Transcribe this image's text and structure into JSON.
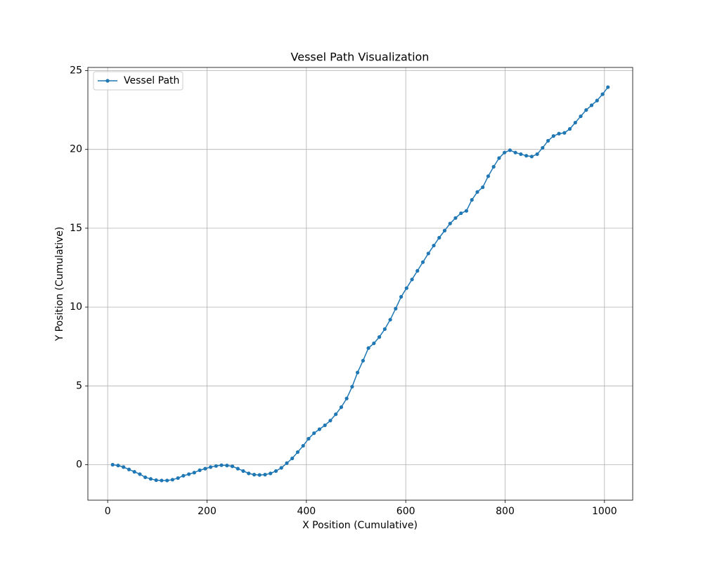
{
  "chart_data": {
    "type": "line",
    "title": "Vessel Path Visualization",
    "x_label": "X Position (Cumulative)",
    "y_label": "Y Position (Cumulative)",
    "x": [
      10.0,
      21.0,
      31.9,
      42.9,
      53.8,
      64.8,
      75.7,
      86.7,
      97.6,
      108.6,
      119.6,
      130.5,
      141.5,
      152.4,
      163.4,
      174.3,
      185.3,
      196.3,
      207.2,
      218.2,
      229.1,
      240.1,
      251.0,
      262.0,
      272.9,
      283.9,
      294.9,
      305.8,
      316.8,
      327.7,
      338.7,
      349.6,
      360.6,
      371.5,
      382.5,
      393.5,
      404.4,
      415.4,
      426.3,
      437.3,
      448.2,
      459.2,
      470.2,
      481.1,
      492.1,
      503.0,
      514.0,
      524.9,
      535.9,
      546.8,
      557.8,
      568.8,
      579.7,
      590.7,
      601.6,
      612.6,
      623.5,
      634.5,
      645.5,
      656.4,
      667.4,
      678.3,
      689.3,
      700.2,
      711.2,
      722.1,
      733.1,
      744.1,
      755.0,
      766.0,
      776.9,
      787.9,
      798.8,
      809.8,
      820.7,
      831.7,
      842.7,
      853.6,
      864.6,
      875.5,
      886.5,
      897.4,
      908.4,
      919.4,
      930.3,
      941.3,
      952.2,
      963.2,
      974.1,
      985.1,
      996.1,
      1007.0
    ],
    "series": [
      {
        "name": "Vessel Path",
        "color": "#1f77b4",
        "values": [
          0,
          -0.05,
          -0.15,
          -0.3,
          -0.45,
          -0.6,
          -0.8,
          -0.9,
          -0.98,
          -1.0,
          -1.0,
          -0.95,
          -0.85,
          -0.7,
          -0.6,
          -0.5,
          -0.35,
          -0.25,
          -0.15,
          -0.08,
          -0.03,
          -0.05,
          -0.1,
          -0.25,
          -0.4,
          -0.55,
          -0.63,
          -0.65,
          -0.63,
          -0.55,
          -0.4,
          -0.2,
          0.1,
          0.4,
          0.8,
          1.2,
          1.65,
          2.0,
          2.25,
          2.5,
          2.8,
          3.2,
          3.65,
          4.2,
          4.95,
          5.85,
          6.6,
          7.4,
          7.7,
          8.1,
          8.6,
          9.2,
          9.9,
          10.65,
          11.2,
          11.75,
          12.3,
          12.85,
          13.4,
          13.9,
          14.4,
          14.85,
          15.3,
          15.65,
          15.95,
          16.1,
          16.8,
          17.3,
          17.6,
          18.3,
          18.9,
          19.45,
          19.8,
          19.95,
          19.8,
          19.7,
          19.6,
          19.55,
          19.7,
          20.1,
          20.55,
          20.85,
          21.0,
          21.05,
          21.3,
          21.7,
          22.1,
          22.5,
          22.8,
          23.1,
          23.5,
          23.95
        ]
      }
    ],
    "xlim": [
      -39.85,
      1056.85
    ],
    "xticks": [
      0,
      200,
      400,
      600,
      800,
      1000
    ],
    "ylim": [
      -2.25,
      25.2
    ],
    "yticks": [
      0,
      5,
      10,
      15,
      20,
      25
    ],
    "grid": true,
    "legend": "upper left",
    "marker": true
  }
}
